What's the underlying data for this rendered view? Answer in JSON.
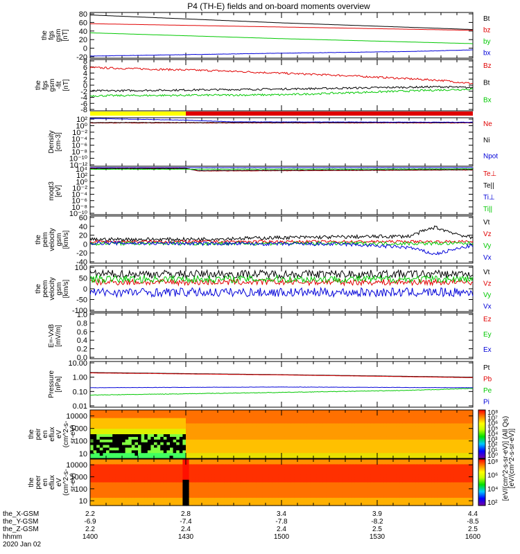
{
  "title": "P4 (TH-E) fields and on-board moments overview",
  "date": "2020 Jan 02",
  "colors": {
    "black": "#000000",
    "red": "#e00000",
    "green": "#00c800",
    "blue": "#0000d8",
    "yellow": "#ffff00"
  },
  "chart_data": [
    {
      "type": "line",
      "ylabel": [
        "the",
        "fgs",
        "gsm",
        "[nT]"
      ],
      "yticks": [
        "80",
        "60",
        "40",
        "20",
        "0",
        "-20"
      ],
      "ylim": [
        -25,
        85
      ],
      "series": [
        {
          "name": "Bt",
          "color": "black",
          "points": [
            [
              0,
              79
            ],
            [
              60,
              60
            ],
            [
              120,
              44
            ]
          ],
          "noise": 0
        },
        {
          "name": "bz",
          "color": "red",
          "points": [
            [
              0,
              58
            ],
            [
              60,
              50
            ],
            [
              120,
              42
            ]
          ],
          "noise": 0
        },
        {
          "name": "by",
          "color": "green",
          "points": [
            [
              0,
              36
            ],
            [
              60,
              22
            ],
            [
              120,
              10
            ]
          ],
          "noise": 0
        },
        {
          "name": "bx",
          "color": "blue",
          "points": [
            [
              0,
              -20
            ],
            [
              60,
              -13
            ],
            [
              100,
              -9
            ],
            [
              120,
              -5
            ]
          ],
          "noise": 0.3
        }
      ]
    },
    {
      "type": "line",
      "ylabel": [
        "the",
        "fgs",
        "gsm",
        "-fit",
        "[nT]"
      ],
      "yticks": [
        "8",
        "6",
        "4",
        "2",
        "0",
        "-2",
        "-4",
        "-6",
        "-8"
      ],
      "ylim": [
        -8,
        8
      ],
      "series": [
        {
          "name": "Bz",
          "color": "red",
          "points": [
            [
              0,
              5.5
            ],
            [
              40,
              4.5
            ],
            [
              80,
              3
            ],
            [
              100,
              2
            ],
            [
              110,
              1.5
            ],
            [
              120,
              0.5
            ]
          ],
          "noise": 0.3
        },
        {
          "name": "Bt",
          "color": "black",
          "points": [
            [
              0,
              -1.8
            ],
            [
              60,
              -1.2
            ],
            [
              110,
              -0.5
            ],
            [
              120,
              -0.8
            ]
          ],
          "noise": 0.3
        },
        {
          "name": "Bx",
          "color": "green",
          "points": [
            [
              0,
              -3.3
            ],
            [
              60,
              -3
            ],
            [
              110,
              -1.5
            ],
            [
              120,
              -1.2
            ]
          ],
          "noise": 0.3
        }
      ]
    },
    {
      "type": "line",
      "log": true,
      "ylabel": [
        "Density",
        "[cm-3]"
      ],
      "yticks": [
        "10²",
        "10⁰",
        "10⁻²",
        "10⁻⁴",
        "10⁻⁶",
        "10⁻⁸",
        "10⁻¹⁰",
        "10⁻¹²"
      ],
      "ylim": [
        -12,
        2
      ],
      "series": [
        {
          "name": "Ne",
          "color": "red",
          "points": [
            [
              0,
              0.5
            ],
            [
              120,
              0.5
            ]
          ],
          "noise": 0.05
        },
        {
          "name": "Ni",
          "color": "black",
          "points": [
            [
              0,
              0.6
            ],
            [
              120,
              0.6
            ]
          ],
          "noise": 0.05
        },
        {
          "name": "Npot",
          "color": "blue",
          "points": [
            [
              0,
              1.8
            ],
            [
              30,
              1.3
            ],
            [
              45,
              0.8
            ],
            [
              120,
              0.7
            ]
          ],
          "noise": 0.05
        }
      ]
    },
    {
      "type": "line",
      "log": true,
      "ylabel": [
        "moqt3",
        "[eV]"
      ],
      "yticks": [
        "10⁴",
        "10²",
        "10⁰",
        "10⁻²",
        "10⁻⁴",
        "10⁻⁶",
        "10⁻⁸",
        "10⁻¹⁰"
      ],
      "ylim": [
        -10,
        4
      ],
      "series": [
        {
          "name": "Te⊥",
          "color": "red",
          "points": [
            [
              0,
              3.8
            ],
            [
              30,
              3.8
            ],
            [
              34,
              3
            ],
            [
              40,
              3
            ],
            [
              120,
              3.3
            ]
          ],
          "noise": 0.05
        },
        {
          "name": "Te||",
          "color": "black",
          "points": [
            [
              0,
              3.7
            ],
            [
              30,
              3.7
            ],
            [
              34,
              3.1
            ],
            [
              120,
              3.4
            ]
          ],
          "noise": 0.05
        },
        {
          "name": "Ti⊥",
          "color": "blue",
          "points": [
            [
              0,
              4
            ],
            [
              120,
              4
            ]
          ],
          "noise": 0.02
        },
        {
          "name": "Ti||",
          "color": "green",
          "points": [
            [
              0,
              3.5
            ],
            [
              120,
              3.6
            ]
          ],
          "noise": 0.05
        }
      ]
    },
    {
      "type": "line",
      "ylabel": [
        "the",
        "peim",
        "velocity",
        "gsm",
        "[km/s]"
      ],
      "yticks": [
        "60",
        "40",
        "20",
        "0",
        "-20",
        "-40"
      ],
      "ylim": [
        -45,
        60
      ],
      "series": [
        {
          "name": "Vt",
          "color": "black",
          "points": [
            [
              0,
              8
            ],
            [
              30,
              8
            ],
            [
              60,
              12
            ],
            [
              100,
              15
            ],
            [
              108,
              35
            ],
            [
              120,
              10
            ]
          ],
          "noise": 4
        },
        {
          "name": "Vz",
          "color": "red",
          "points": [
            [
              0,
              3
            ],
            [
              120,
              3
            ]
          ],
          "noise": 3
        },
        {
          "name": "Vy",
          "color": "green",
          "points": [
            [
              0,
              -1
            ],
            [
              120,
              -1
            ]
          ],
          "noise": 4
        },
        {
          "name": "Vx",
          "color": "blue",
          "points": [
            [
              0,
              0
            ],
            [
              80,
              -3
            ],
            [
              100,
              -10
            ],
            [
              108,
              -25
            ],
            [
              120,
              -5
            ]
          ],
          "noise": 4
        }
      ]
    },
    {
      "type": "line",
      "ylabel": [
        "the",
        "peem",
        "velocity",
        "gsm",
        "[km/s]"
      ],
      "yticks": [
        "100",
        "50",
        "0",
        "-50",
        "-100"
      ],
      "ylim": [
        -125,
        100
      ],
      "series": [
        {
          "name": "Vt",
          "color": "black",
          "points": [
            [
              0,
              60
            ],
            [
              120,
              60
            ]
          ],
          "noise": 20
        },
        {
          "name": "Vz",
          "color": "red",
          "points": [
            [
              0,
              20
            ],
            [
              120,
              20
            ]
          ],
          "noise": 15
        },
        {
          "name": "Vy",
          "color": "green",
          "points": [
            [
              0,
              35
            ],
            [
              120,
              35
            ]
          ],
          "noise": 18
        },
        {
          "name": "Vx",
          "color": "blue",
          "points": [
            [
              0,
              -30
            ],
            [
              120,
              -30
            ]
          ],
          "noise": 22
        }
      ]
    },
    {
      "type": "line",
      "ylabel": [
        "E=-VxB",
        "[mV/m]"
      ],
      "yticks": [
        "1.0",
        "0.8",
        "0.6",
        "0.4",
        "0.2",
        "0.0"
      ],
      "ylim": [
        0,
        1
      ],
      "series": [
        {
          "name": "Ez",
          "color": "red",
          "points": []
        },
        {
          "name": "Ey",
          "color": "green",
          "points": []
        },
        {
          "name": "Ex",
          "color": "blue",
          "points": []
        }
      ]
    },
    {
      "type": "line",
      "log": true,
      "ylabel": [
        "Pressure",
        "[nPa]"
      ],
      "yticks": [
        "10.00",
        "1.00",
        "0.10",
        "0.01"
      ],
      "ylim": [
        -2.2,
        1.2
      ],
      "series": [
        {
          "name": "Pt",
          "color": "black",
          "points": [
            [
              0,
              0.38
            ],
            [
              60,
              0.22
            ],
            [
              120,
              0.03
            ]
          ],
          "noise": 0
        },
        {
          "name": "Pb",
          "color": "red",
          "points": [
            [
              0,
              0.35
            ],
            [
              60,
              0.2
            ],
            [
              120,
              0.0
            ]
          ],
          "noise": 0.005
        },
        {
          "name": "Pe",
          "color": "green",
          "points": [
            [
              0,
              -1.3
            ],
            [
              60,
              -1.1
            ],
            [
              100,
              -0.95
            ],
            [
              120,
              -0.8
            ]
          ],
          "noise": 0.02
        },
        {
          "name": "Pi",
          "color": "blue",
          "points": [
            [
              0,
              -0.75
            ],
            [
              60,
              -0.7
            ],
            [
              120,
              -0.75
            ]
          ],
          "noise": 0.01
        }
      ]
    },
    {
      "type": "heatmap",
      "ylabel": [
        "the",
        "peir",
        "en",
        "eflux",
        "eV",
        "(cm^2-s-",
        "sr-eV)"
      ],
      "yticks": [
        "10000",
        "1000",
        "100",
        "10"
      ],
      "ylim": [
        4,
        30000
      ],
      "description": "ion energy flux"
    },
    {
      "type": "heatmap",
      "ylabel": [
        "the",
        "peer",
        "en",
        "eflux",
        "eV",
        "(cm^2-s-",
        "sr-eV)"
      ],
      "yticks": [
        "10000",
        "1000",
        "100",
        "10"
      ],
      "ylim": [
        4,
        30000
      ],
      "description": "electron energy flux"
    }
  ],
  "colorbar": {
    "label": "[eV/(cm^2-s-sr-eV)] (All Qs)",
    "label2": "[eV/(cm^2-s-sr-eV)]",
    "top_ticks": [
      "10⁸",
      "10⁷",
      "10⁶",
      "10⁵",
      "10⁴",
      "10³",
      "10²",
      "10¹",
      "10⁰"
    ],
    "bottom_ticks": [
      "10⁸",
      "10⁶",
      "10⁴",
      "10²"
    ]
  },
  "xaxis": {
    "row_labels": [
      "the_X-GSM",
      "the_Y-GSM",
      "the_Z-GSM",
      "hhmm",
      "2020 Jan 02"
    ],
    "ticks": [
      {
        "t": 0,
        "x": "2.2",
        "y": "-6.9",
        "z": "2.2",
        "hhmm": "1400"
      },
      {
        "t": 30,
        "x": "2.8",
        "y": "-7.4",
        "z": "2.4",
        "hhmm": "1430"
      },
      {
        "t": 60,
        "x": "3.4",
        "y": "-7.8",
        "z": "2.4",
        "hhmm": "1500"
      },
      {
        "t": 90,
        "x": "3.9",
        "y": "-8.2",
        "z": "2.5",
        "hhmm": "1530"
      },
      {
        "t": 120,
        "x": "4.4",
        "y": "-8.5",
        "z": "2.5",
        "hhmm": "1600"
      }
    ]
  },
  "mode_bar": {
    "segments": [
      {
        "from": 0,
        "to": 30,
        "color": "yellow"
      },
      {
        "from": 30,
        "to": 120,
        "color": "red"
      }
    ]
  }
}
